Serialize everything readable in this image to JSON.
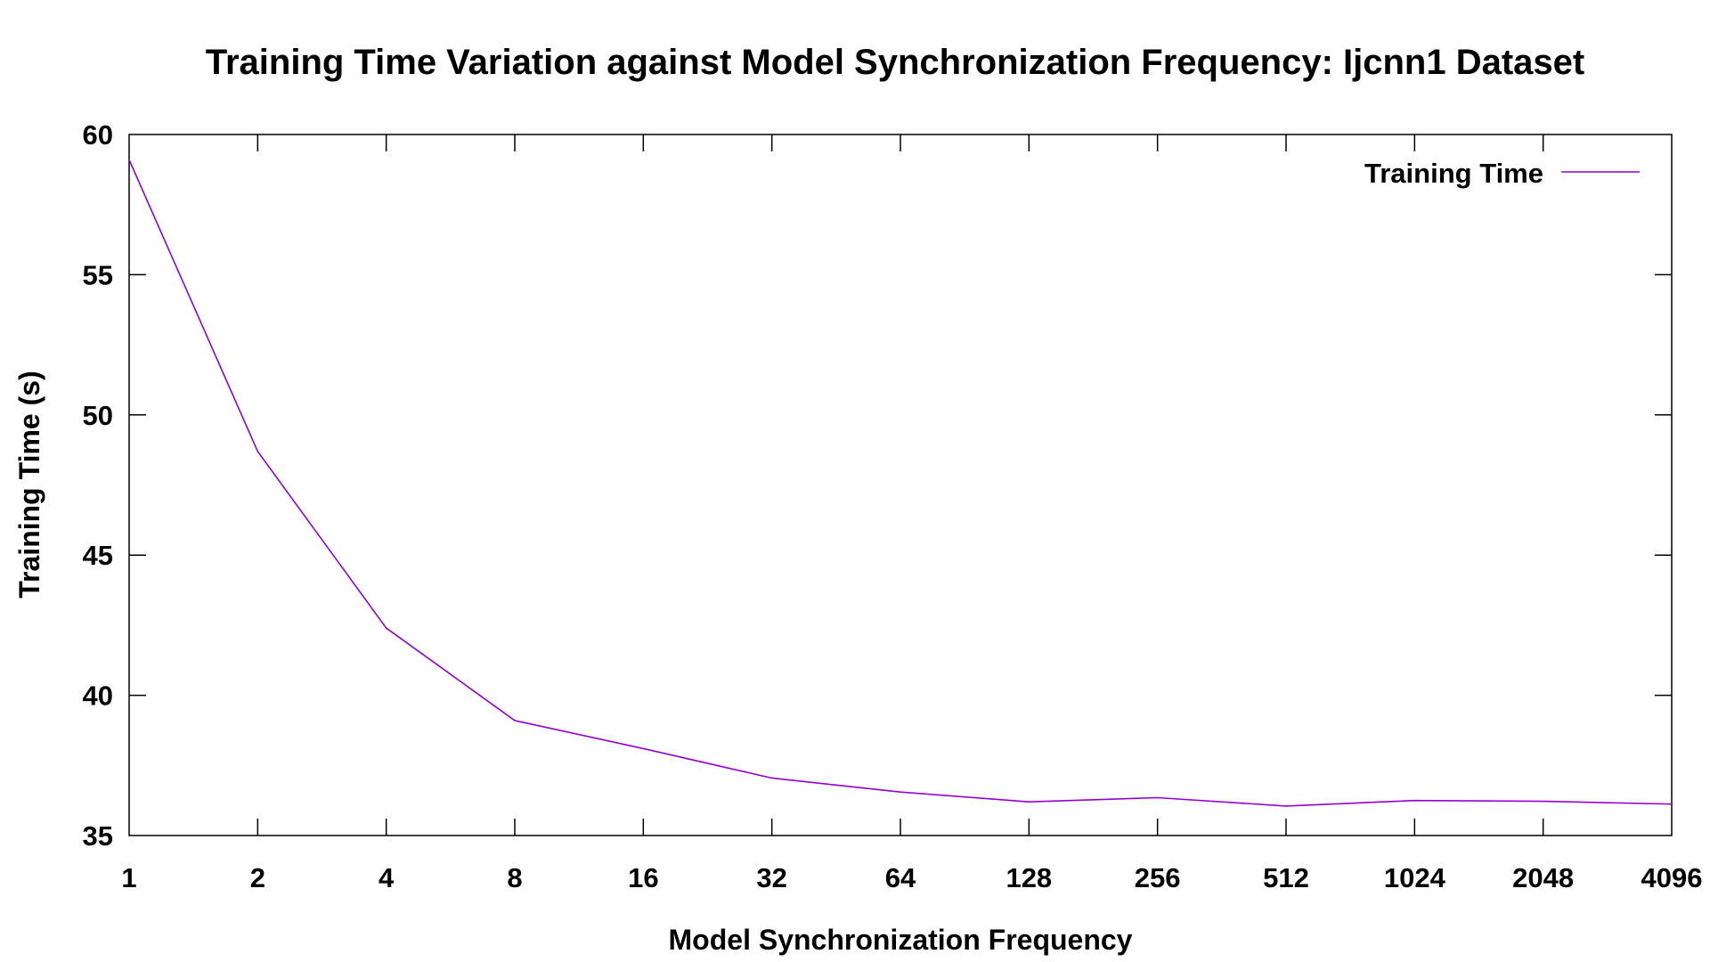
{
  "chart_data": {
    "type": "line",
    "title": "Training Time Variation against Model Synchronization Frequency: Ijcnn1 Dataset",
    "xlabel": "Model Synchronization Frequency",
    "ylabel": "Training Time (s)",
    "x_scale": "log2",
    "categories": [
      "1",
      "2",
      "4",
      "8",
      "16",
      "32",
      "64",
      "128",
      "256",
      "512",
      "1024",
      "2048",
      "4096"
    ],
    "x": [
      1,
      2,
      4,
      8,
      16,
      32,
      64,
      128,
      256,
      512,
      1024,
      2048,
      4096
    ],
    "ylim": [
      35,
      60
    ],
    "yticks": [
      "35",
      "40",
      "45",
      "50",
      "55",
      "60"
    ],
    "grid": false,
    "legend_position": "top-right",
    "series": [
      {
        "name": "Training Time",
        "color": "#9400d3",
        "values": [
          59.1,
          48.7,
          42.4,
          39.1,
          38.1,
          37.05,
          36.55,
          36.2,
          36.35,
          36.05,
          36.25,
          36.22,
          36.12
        ]
      }
    ]
  }
}
